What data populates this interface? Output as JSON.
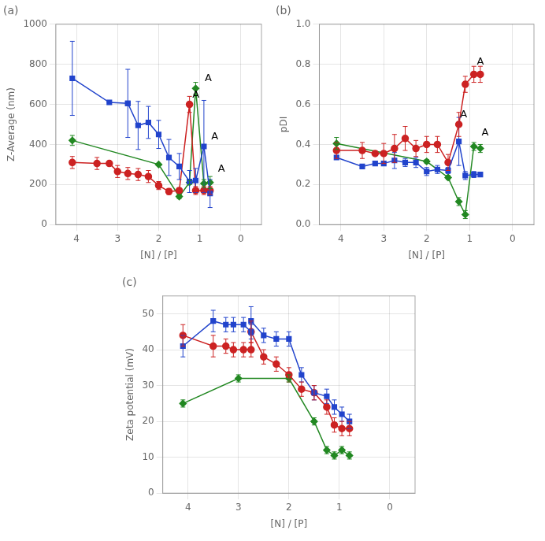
{
  "chart_data": [
    {
      "type": "line",
      "title": "(a)",
      "xlabel": "[N] / [P]",
      "ylabel": "Z-Average (nm)",
      "xlim": [
        4.5,
        -0.5
      ],
      "ylim": [
        0,
        1000
      ],
      "xticks": [
        4,
        3,
        2,
        1,
        0
      ],
      "yticks": [
        0,
        200,
        400,
        600,
        800,
        1000
      ],
      "grid": true,
      "series": [
        {
          "color": "#2244cc",
          "marker": "square",
          "x": [
            4.1,
            3.2,
            2.75,
            2.75,
            2.5,
            2.25,
            2.0,
            1.75,
            1.5,
            1.25,
            1.1,
            0.9,
            0.75
          ],
          "values": [
            730,
            610,
            605,
            605,
            495,
            510,
            450,
            335,
            290,
            215,
            220,
            390,
            155
          ],
          "yerr": [
            185,
            0,
            0,
            170,
            120,
            80,
            70,
            90,
            65,
            55,
            60,
            230,
            70
          ]
        },
        {
          "color": "#cc2222",
          "marker": "circle",
          "x": [
            4.1,
            3.5,
            3.2,
            3.0,
            2.75,
            2.5,
            2.25,
            2.0,
            1.75,
            1.5,
            1.25,
            1.1,
            0.9,
            0.75
          ],
          "values": [
            310,
            305,
            305,
            265,
            255,
            250,
            240,
            195,
            165,
            170,
            600,
            170,
            170,
            170
          ],
          "yerr": [
            30,
            30,
            0,
            30,
            30,
            30,
            30,
            20,
            15,
            10,
            40,
            20,
            20,
            20
          ]
        },
        {
          "color": "#228822",
          "marker": "diamond",
          "x": [
            4.1,
            2.0,
            1.5,
            1.25,
            1.1,
            0.9,
            0.75
          ],
          "values": [
            420,
            300,
            140,
            210,
            680,
            205,
            210
          ],
          "yerr": [
            25,
            0,
            10,
            10,
            30,
            20,
            30
          ]
        }
      ],
      "annotations": [
        {
          "text": "A",
          "x": 1.18,
          "y": 635,
          "color": "black"
        },
        {
          "text": "A",
          "x": 0.88,
          "y": 715,
          "color": "black"
        },
        {
          "text": "A",
          "x": 0.72,
          "y": 425,
          "color": "black"
        },
        {
          "text": "A",
          "x": 0.56,
          "y": 265,
          "color": "black"
        }
      ]
    },
    {
      "type": "line",
      "title": "(b)",
      "xlabel": "[N] / [P]",
      "ylabel": "pDI",
      "xlim": [
        4.5,
        -0.5
      ],
      "ylim": [
        0,
        1.0
      ],
      "xticks": [
        4,
        3,
        2,
        1,
        0
      ],
      "yticks": [
        {
          "value": 0,
          "label": "0.0"
        },
        0.2,
        0.4,
        0.6,
        0.8,
        {
          "value": 1.0,
          "label": "1.0"
        }
      ],
      "grid": true,
      "series": [
        {
          "color": "#2244cc",
          "marker": "square",
          "x": [
            4.1,
            3.5,
            3.2,
            3.0,
            2.75,
            2.5,
            2.25,
            2.0,
            1.75,
            1.5,
            1.25,
            1.1,
            0.9,
            0.75
          ],
          "values": [
            0.335,
            0.29,
            0.305,
            0.305,
            0.32,
            0.31,
            0.31,
            0.265,
            0.275,
            0.27,
            0.415,
            0.245,
            0.25,
            0.25
          ],
          "yerr": [
            0.01,
            0.01,
            0,
            0.01,
            0.04,
            0.02,
            0.025,
            0.02,
            0.02,
            0.015,
            0.12,
            0.02,
            0.015,
            0.01
          ]
        },
        {
          "color": "#cc2222",
          "marker": "circle",
          "x": [
            4.1,
            3.5,
            3.2,
            3.0,
            2.75,
            2.5,
            2.25,
            2.0,
            1.75,
            1.5,
            1.25,
            1.1,
            0.9,
            0.75
          ],
          "values": [
            0.37,
            0.37,
            0.355,
            0.355,
            0.38,
            0.43,
            0.38,
            0.4,
            0.4,
            0.31,
            0.5,
            0.7,
            0.75,
            0.75
          ],
          "yerr": [
            0.04,
            0.04,
            0,
            0.05,
            0.07,
            0.06,
            0.04,
            0.04,
            0.04,
            0.04,
            0.06,
            0.04,
            0.04,
            0.04
          ]
        },
        {
          "color": "#228822",
          "marker": "diamond",
          "x": [
            4.1,
            2.0,
            1.5,
            1.25,
            1.1,
            0.9,
            0.75
          ],
          "values": [
            0.405,
            0.315,
            0.235,
            0.115,
            0.05,
            0.39,
            0.38
          ],
          "yerr": [
            0.03,
            0.01,
            0.01,
            0.02,
            0.02,
            0.02,
            0.02
          ]
        }
      ],
      "annotations": [
        {
          "text": "A",
          "x": 1.22,
          "y": 0.535,
          "color": "black"
        },
        {
          "text": "A",
          "x": 0.83,
          "y": 0.8,
          "color": "black"
        },
        {
          "text": "A",
          "x": 0.72,
          "y": 0.445,
          "color": "black"
        }
      ]
    },
    {
      "type": "line",
      "title": "(c)",
      "xlabel": "[N] / [P]",
      "ylabel": "Zeta potential (mV)",
      "xlim": [
        4.5,
        -0.5
      ],
      "ylim": [
        0,
        55
      ],
      "xticks": [
        4,
        3,
        2,
        1,
        0
      ],
      "yticks": [
        0,
        10,
        20,
        30,
        40,
        50
      ],
      "grid": true,
      "series": [
        {
          "color": "#2244cc",
          "marker": "square",
          "x": [
            4.1,
            3.5,
            3.25,
            3.1,
            2.9,
            2.75,
            2.75,
            2.5,
            2.25,
            2.0,
            1.75,
            1.5,
            1.25,
            1.1,
            0.95,
            0.8
          ],
          "values": [
            41,
            48,
            47,
            47,
            47,
            45,
            48,
            44,
            43,
            43,
            33,
            28,
            27,
            24,
            22,
            20
          ],
          "yerr": [
            3,
            3,
            2,
            2,
            2,
            2,
            4,
            2,
            2,
            2,
            2,
            2,
            2,
            2,
            2,
            2
          ]
        },
        {
          "color": "#cc2222",
          "marker": "circle",
          "x": [
            4.1,
            3.5,
            3.25,
            3.1,
            2.9,
            2.75,
            2.75,
            2.5,
            2.25,
            2.0,
            1.75,
            1.5,
            1.25,
            1.1,
            0.95,
            0.8
          ],
          "values": [
            44,
            41,
            41,
            40,
            40,
            40,
            45,
            38,
            36,
            33,
            29,
            28,
            24,
            19,
            18,
            18
          ],
          "yerr": [
            3,
            3,
            2,
            2,
            2,
            2,
            3,
            2,
            2,
            2,
            2,
            2,
            2,
            2,
            2,
            2
          ]
        },
        {
          "color": "#228822",
          "marker": "diamond",
          "x": [
            4.1,
            3.0,
            2.0,
            1.5,
            1.25,
            1.1,
            0.95,
            0.8
          ],
          "values": [
            25,
            32,
            32,
            20,
            12,
            10.5,
            12,
            10.5
          ],
          "yerr": [
            1,
            1,
            1,
            1,
            1,
            1,
            1,
            1
          ]
        }
      ]
    }
  ]
}
